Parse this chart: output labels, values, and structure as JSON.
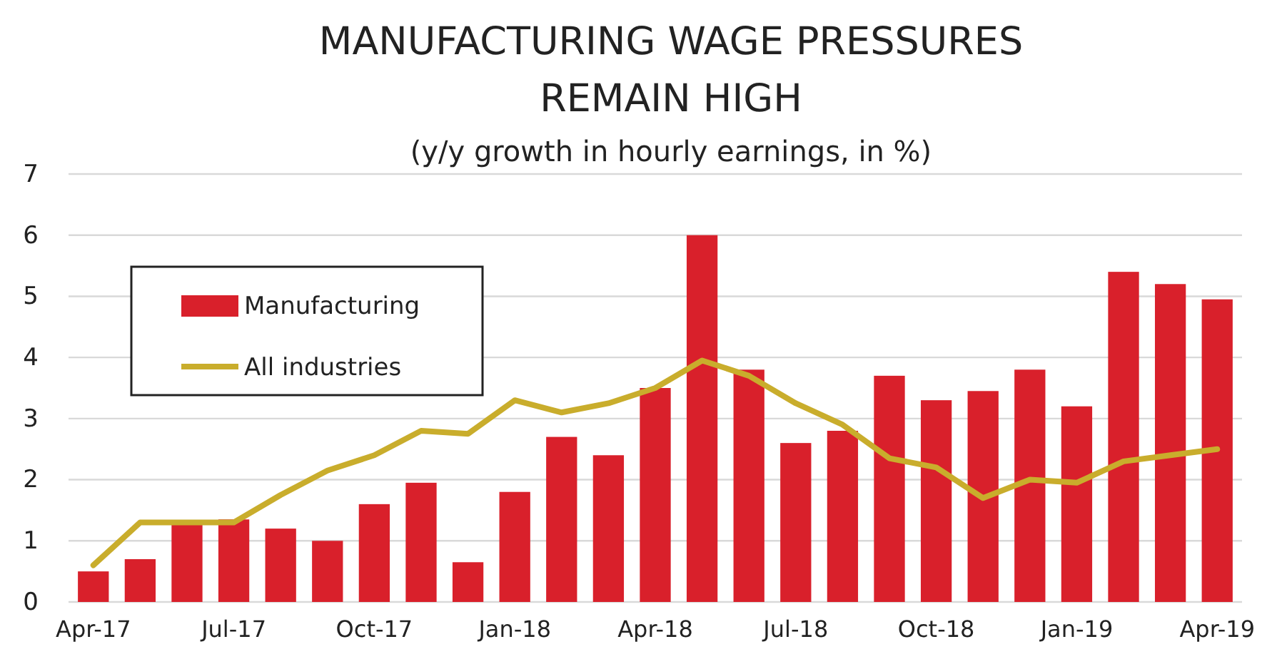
{
  "chart_data": {
    "type": "bar",
    "title": "MANUFACTURING WAGE PRESSURES\nREMAIN HIGH",
    "subtitle": "(y/y growth in hourly earnings, in %)",
    "categories": [
      "Apr-17",
      null,
      null,
      "Jul-17",
      null,
      null,
      "Oct-17",
      null,
      null,
      "Jan-18",
      null,
      null,
      "Apr-18",
      null,
      null,
      "Jul-18",
      null,
      null,
      "Oct-18",
      null,
      null,
      "Jan-19",
      null,
      null,
      "Apr-19"
    ],
    "series": [
      {
        "name": "Manufacturing",
        "color": "#d9202b",
        "values": [
          0.5,
          0.7,
          1.3,
          1.35,
          1.2,
          1.0,
          1.6,
          1.95,
          0.65,
          1.8,
          2.7,
          2.4,
          3.5,
          6.0,
          3.8,
          2.6,
          2.8,
          3.7,
          3.3,
          3.45,
          3.8,
          3.2,
          5.4,
          5.2,
          4.95
        ]
      },
      {
        "name": "All industries",
        "type": "line",
        "color": "#c9ad2c",
        "values": [
          0.6,
          1.3,
          1.3,
          1.3,
          1.75,
          2.15,
          2.4,
          2.8,
          2.75,
          3.3,
          3.1,
          3.25,
          3.5,
          3.95,
          3.7,
          3.25,
          2.9,
          2.35,
          2.2,
          1.7,
          2.0,
          1.95,
          2.3,
          2.4,
          2.5
        ]
      }
    ],
    "ylim": [
      0,
      7
    ],
    "yticks": [
      0,
      1,
      2,
      3,
      4,
      5,
      6,
      7
    ],
    "grid": "y",
    "legend": "top left"
  }
}
